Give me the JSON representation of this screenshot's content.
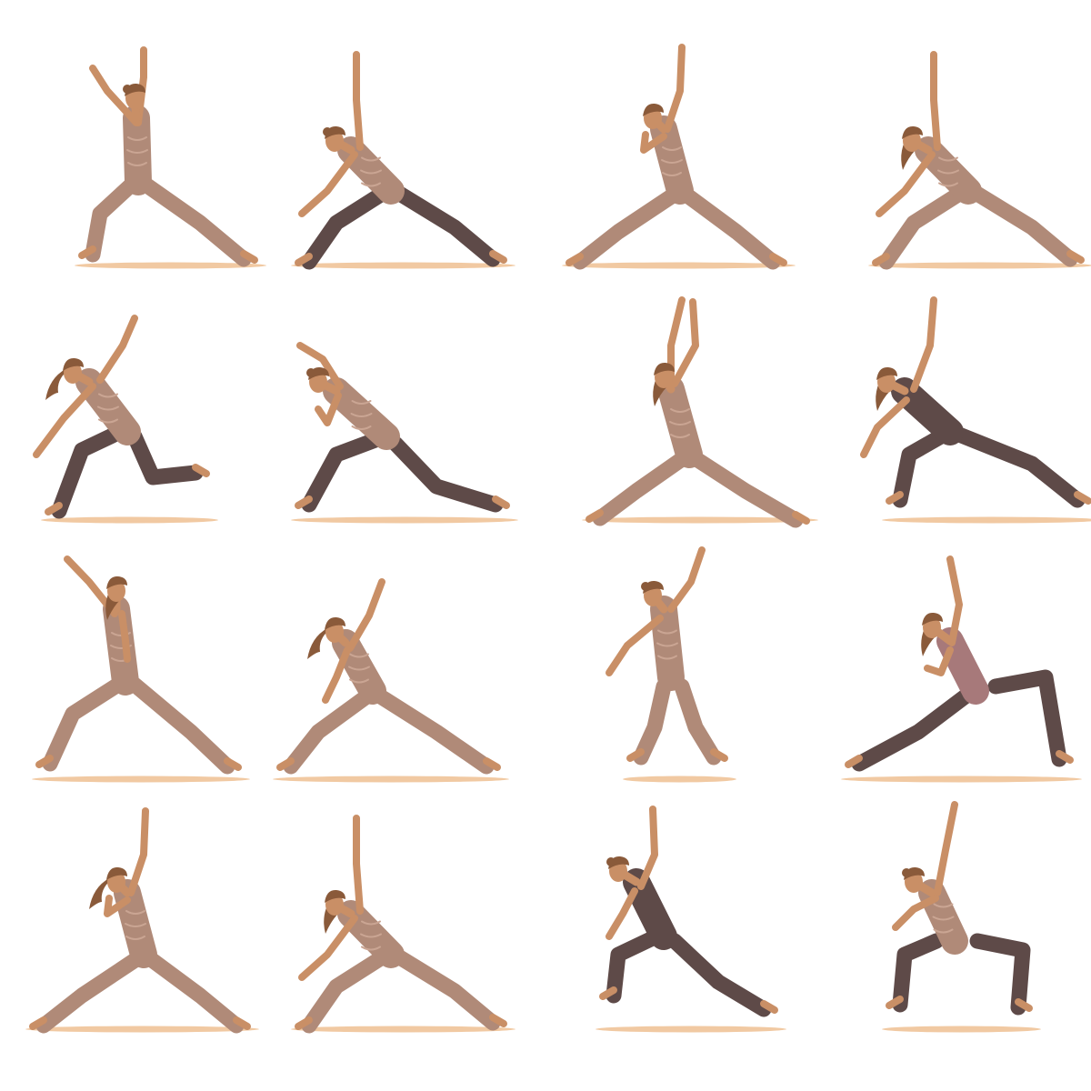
{
  "illustration": {
    "subject": "yoga-pose-figures",
    "palette": {
      "background": "#ffffff",
      "skin": "#c98f66",
      "skin_shadow": "#b57a52",
      "hair": "#8a5a3a",
      "outfit_patterned": "#b08a78",
      "outfit_pattern_line": "#caa593",
      "leggings_dark": "#5e4a48",
      "top_mauve": "#a7797a",
      "floor_shadow": "#f1c9a2"
    },
    "figures": [
      {
        "pose": "warrior-arms-overhead",
        "hair": "bun",
        "outfit": "patterned-bodysuit",
        "facing": "right"
      },
      {
        "pose": "reverse-warrior",
        "hair": "bun",
        "outfit": "patterned-top-dark-leggings",
        "facing": "left"
      },
      {
        "pose": "triangle-arm-up",
        "hair": "short",
        "outfit": "patterned-bodysuit",
        "facing": "left"
      },
      {
        "pose": "reverse-warrior",
        "hair": "curly",
        "outfit": "patterned-bodysuit",
        "facing": "left"
      },
      {
        "pose": "low-lunge-side-reach",
        "hair": "ponytail",
        "outfit": "patterned-top-dark-leggings",
        "facing": "left"
      },
      {
        "pose": "low-lunge-side-bend",
        "hair": "bun",
        "outfit": "patterned-top-dark-leggings",
        "facing": "left"
      },
      {
        "pose": "triangle-arms-overhead",
        "hair": "curly",
        "outfit": "patterned-bodysuit",
        "facing": "left"
      },
      {
        "pose": "extended-side-angle",
        "hair": "long",
        "outfit": "dark-bodysuit",
        "facing": "left"
      },
      {
        "pose": "warrior-arm-up",
        "hair": "long",
        "outfit": "patterned-bodysuit",
        "facing": "right"
      },
      {
        "pose": "wide-lunge-arm-up",
        "hair": "ponytail",
        "outfit": "patterned-bodysuit",
        "facing": "left"
      },
      {
        "pose": "standing-side-reach",
        "hair": "bun",
        "outfit": "patterned-bodysuit",
        "facing": "left"
      },
      {
        "pose": "deep-lunge-arm-up",
        "hair": "long",
        "outfit": "mauve-top-dark-leggings",
        "facing": "left"
      },
      {
        "pose": "triangle-arm-up",
        "hair": "ponytail",
        "outfit": "patterned-bodysuit",
        "facing": "left"
      },
      {
        "pose": "reverse-warrior",
        "hair": "long",
        "outfit": "patterned-bodysuit",
        "facing": "left"
      },
      {
        "pose": "crescent-lunge-arm-up",
        "hair": "bun",
        "outfit": "dark-bodysuit",
        "facing": "left"
      },
      {
        "pose": "goddess-arm-up",
        "hair": "bun",
        "outfit": "patterned-top-dark-leggings",
        "facing": "left"
      }
    ]
  }
}
